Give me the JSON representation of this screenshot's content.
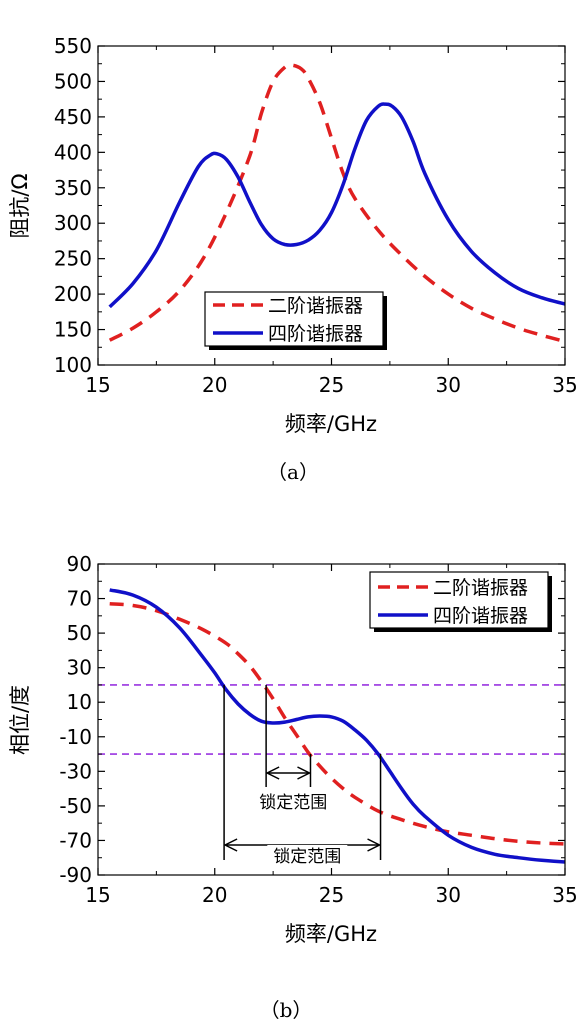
{
  "chart_data": [
    {
      "type": "line",
      "panel_label": "（a）",
      "xlabel": "频率/GHz",
      "ylabel": "阻抗/Ω",
      "xlim": [
        15,
        35
      ],
      "ylim": [
        100,
        550
      ],
      "xticks": [
        15,
        20,
        25,
        30,
        35
      ],
      "yticks": [
        100,
        150,
        200,
        250,
        300,
        350,
        400,
        450,
        500,
        550
      ],
      "legend_position": "bottom-center",
      "series": [
        {
          "name": "二阶谐振器",
          "color": "#e02020",
          "dash": "dashed",
          "x": [
            15.5,
            16.5,
            17.5,
            18.5,
            19.5,
            20.5,
            21.5,
            22,
            22.5,
            23,
            23.3,
            23.7,
            24,
            24.5,
            25,
            25.5,
            26,
            27,
            28,
            29,
            30,
            31,
            32,
            33,
            34,
            35
          ],
          "y": [
            135,
            152,
            175,
            205,
            250,
            315,
            395,
            455,
            500,
            520,
            523,
            518,
            505,
            470,
            420,
            370,
            335,
            290,
            255,
            225,
            200,
            180,
            165,
            152,
            142,
            133
          ]
        },
        {
          "name": "四阶谐振器",
          "color": "#1010c8",
          "dash": "solid",
          "x": [
            15.5,
            16.5,
            17.5,
            18.5,
            19.3,
            19.8,
            20.1,
            20.5,
            21,
            21.5,
            22,
            22.5,
            23,
            23.5,
            24,
            24.5,
            25,
            25.5,
            26,
            26.5,
            27,
            27.3,
            27.6,
            28,
            28.5,
            29,
            30,
            31,
            32,
            33,
            34,
            35
          ],
          "y": [
            182,
            215,
            262,
            330,
            380,
            396,
            398,
            390,
            365,
            330,
            298,
            278,
            270,
            270,
            276,
            290,
            315,
            355,
            405,
            445,
            465,
            468,
            465,
            450,
            415,
            370,
            305,
            260,
            230,
            208,
            195,
            186
          ]
        }
      ]
    },
    {
      "type": "line",
      "panel_label": "（b）",
      "xlabel": "频率/GHz",
      "ylabel": "相位/度",
      "xlim": [
        15,
        35
      ],
      "ylim": [
        -90,
        90
      ],
      "xticks": [
        15,
        20,
        25,
        30,
        35
      ],
      "yticks": [
        90,
        70,
        50,
        30,
        10,
        -10,
        -30,
        -50,
        -70,
        -90
      ],
      "legend_position": "top-right",
      "reference_lines": [
        20,
        -20
      ],
      "reference_color": "#9a35e0",
      "annotations": [
        {
          "text": "锁定范围",
          "x_from": 22.2,
          "x_to": 24.1
        },
        {
          "text": "锁定范围",
          "x_from": 20.4,
          "x_to": 27.1
        }
      ],
      "series": [
        {
          "name": "二阶谐振器",
          "color": "#e02020",
          "dash": "dashed",
          "x": [
            15.5,
            16.5,
            17.5,
            18.5,
            19.5,
            20.5,
            21,
            21.5,
            22,
            22.5,
            23,
            23.5,
            24,
            24.5,
            25,
            25.5,
            26,
            27,
            28,
            29,
            30,
            31,
            32,
            33,
            34,
            35
          ],
          "y": [
            67,
            66,
            63,
            58,
            52,
            44,
            38,
            31,
            22,
            12,
            1,
            -9,
            -19,
            -27,
            -34,
            -40,
            -45,
            -53,
            -58,
            -62,
            -65,
            -67,
            -69,
            -70.5,
            -71.5,
            -72
          ]
        },
        {
          "name": "四阶谐振器",
          "color": "#1010c8",
          "dash": "solid",
          "x": [
            15.5,
            16.5,
            17.5,
            18.5,
            19.5,
            20,
            20.5,
            21,
            21.5,
            22,
            22.5,
            23,
            23.5,
            24,
            24.5,
            25,
            25.5,
            26,
            26.5,
            27,
            27.5,
            28,
            28.5,
            29,
            30,
            31,
            32,
            33,
            34,
            35
          ],
          "y": [
            75,
            72,
            65,
            53,
            36,
            27,
            17,
            9,
            3,
            -1,
            -2,
            -1.5,
            0,
            1.5,
            2,
            1.5,
            -1,
            -6,
            -12,
            -20,
            -30,
            -40,
            -49,
            -56,
            -67,
            -74,
            -78,
            -80,
            -81.5,
            -82.5
          ]
        }
      ]
    }
  ]
}
